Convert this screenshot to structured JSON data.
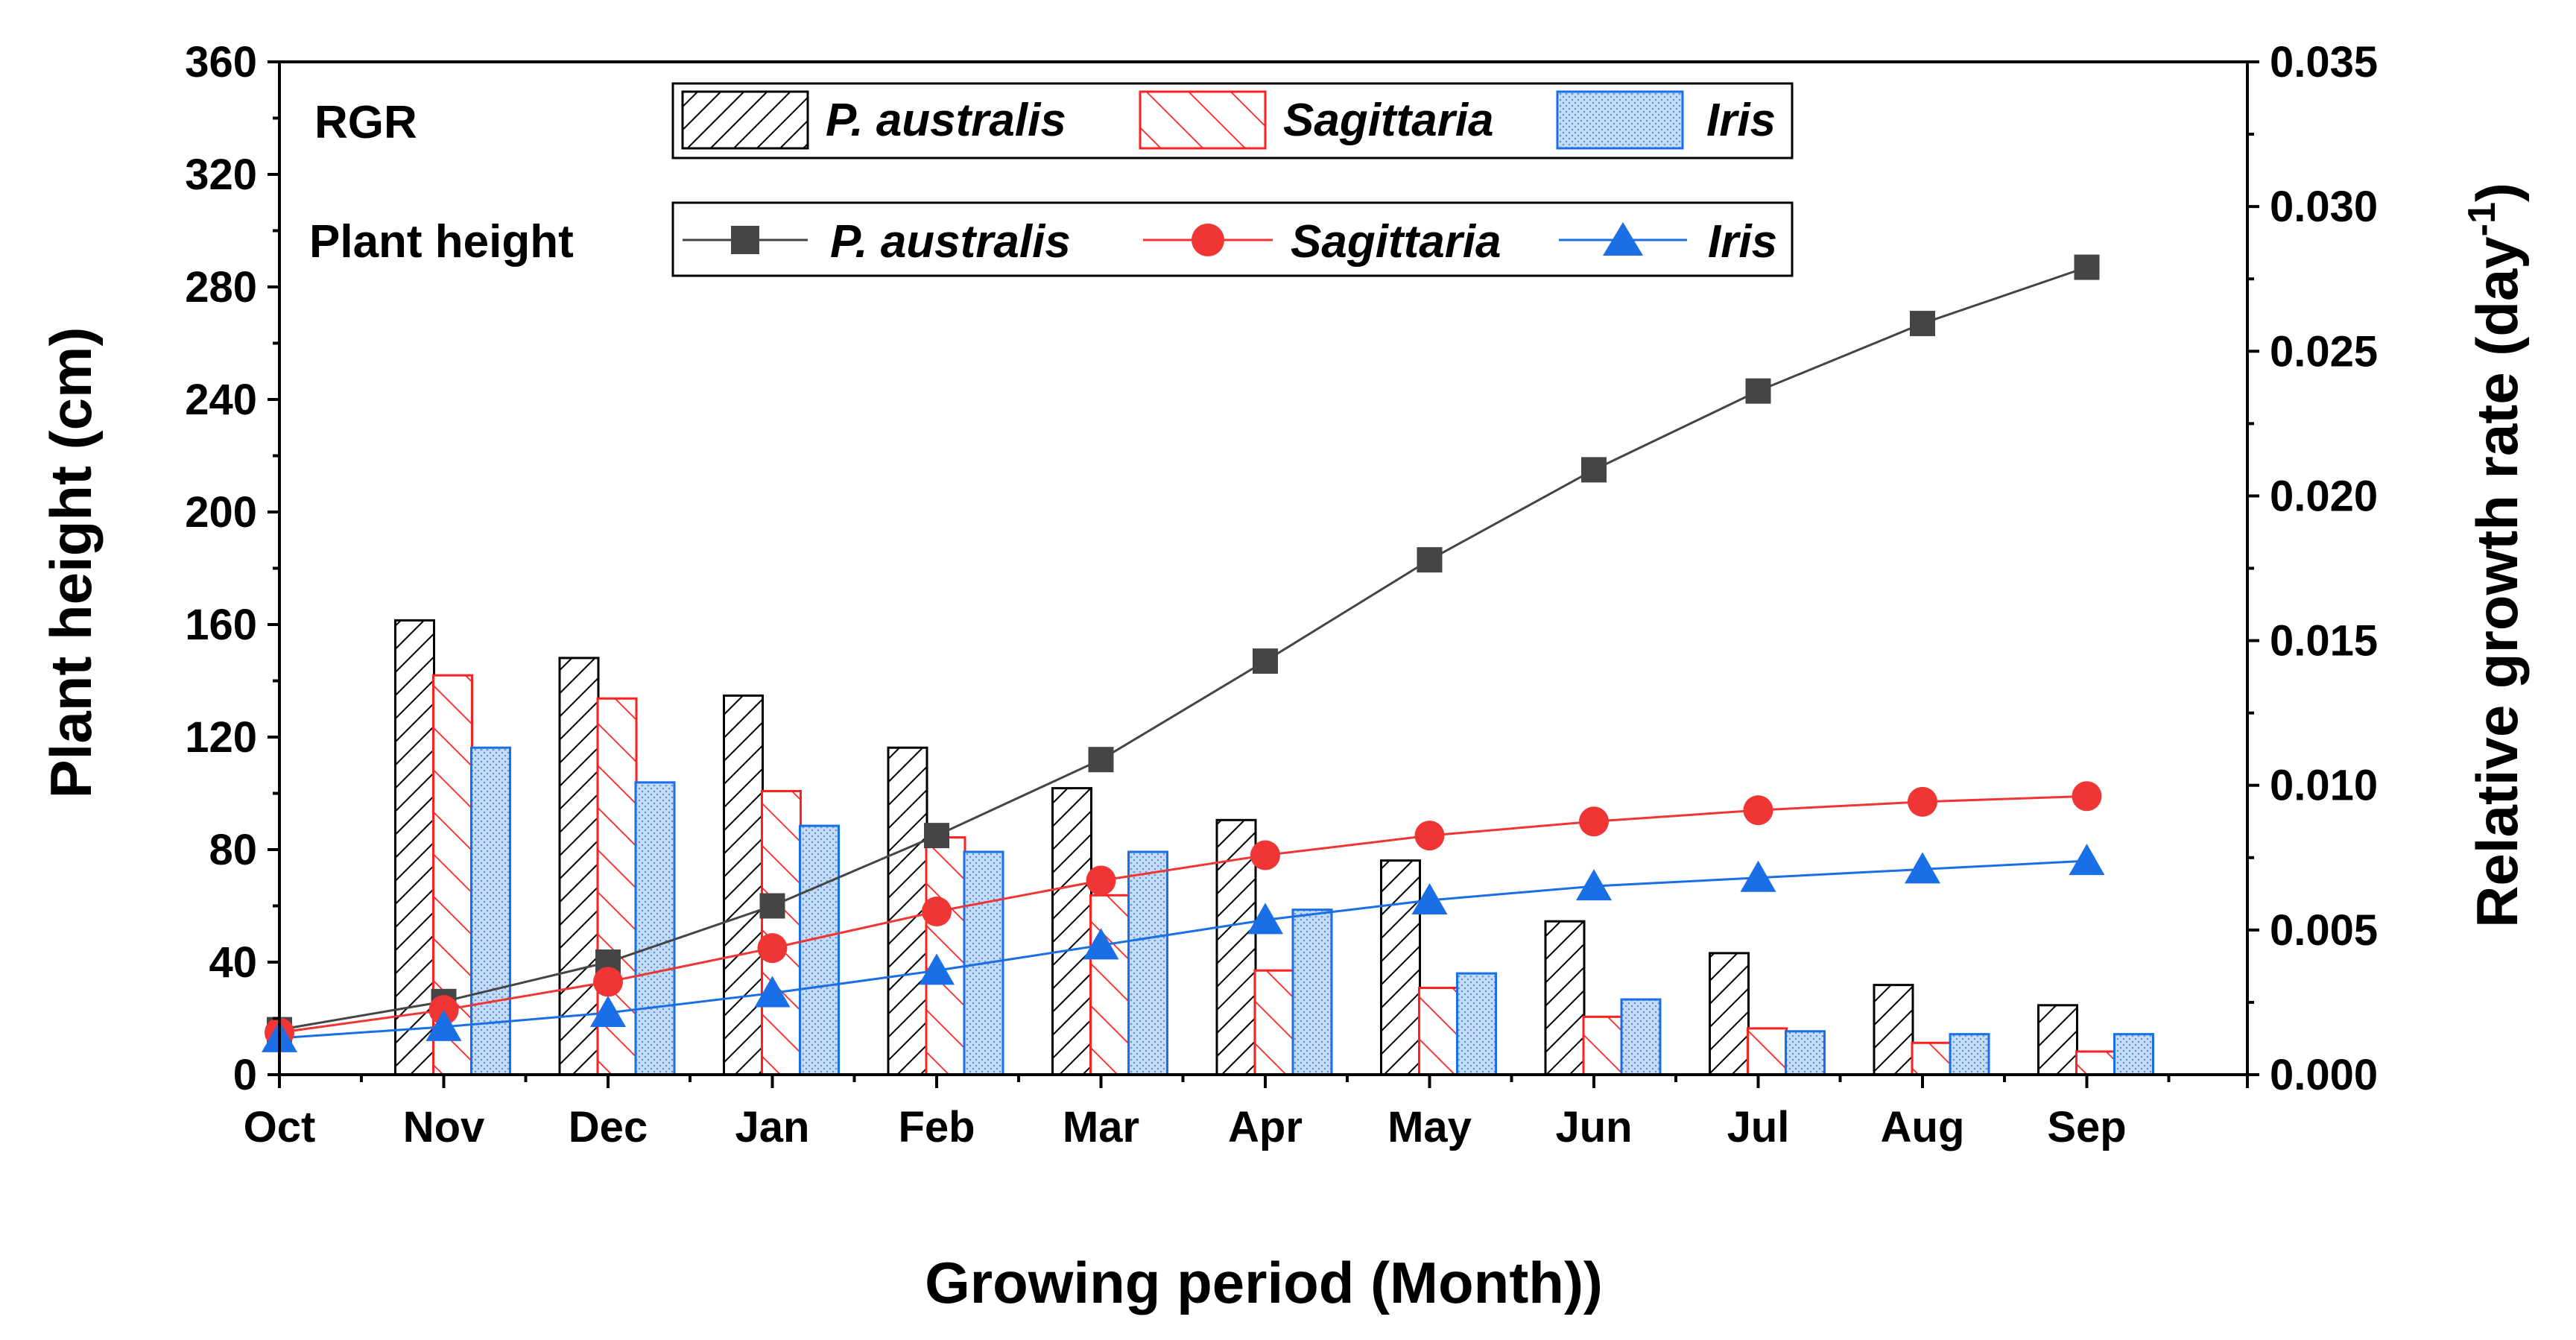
{
  "chart_data": {
    "type": "bar+line",
    "xlabel": "Growing period (Month))",
    "ylabel_left": "Plant height (cm)",
    "ylabel_right_prefix": "Relative growth rate (day",
    "ylabel_right_sup": "-1",
    "ylabel_right_suffix": ")",
    "categories": [
      "Oct",
      "Nov",
      "Dec",
      "Jan",
      "Feb",
      "Mar",
      "Apr",
      "May",
      "Jun",
      "Jul",
      "Aug",
      "Sep"
    ],
    "ylim_left": [
      0,
      360
    ],
    "yticks_left": [
      "0",
      "40",
      "80",
      "120",
      "160",
      "200",
      "240",
      "280",
      "320",
      "360"
    ],
    "ylim_right": [
      0,
      0.035
    ],
    "yticks_right": [
      "0.000",
      "0.005",
      "0.010",
      "0.015",
      "0.020",
      "0.025",
      "0.030",
      "0.035"
    ],
    "legend_rgr_label": "RGR",
    "legend_height_label": "Plant height",
    "rgr_series": [
      {
        "name": "P. australis",
        "style": "hatch-black",
        "color": "#000000",
        "values": [
          null,
          0.0157,
          0.0144,
          0.0131,
          0.0113,
          0.0099,
          0.0088,
          0.0074,
          0.0053,
          0.0042,
          0.0031,
          0.0024
        ]
      },
      {
        "name": "Sagittaria",
        "style": "hatch-red",
        "color": "#ff2020",
        "values": [
          null,
          0.0138,
          0.013,
          0.0098,
          0.0082,
          0.0062,
          0.0036,
          0.003,
          0.002,
          0.0016,
          0.0011,
          0.0008
        ]
      },
      {
        "name": "Iris",
        "style": "dots-blue",
        "color": "#1a6fe6",
        "values": [
          null,
          0.0113,
          0.0101,
          0.0086,
          0.0077,
          0.0077,
          0.0057,
          0.0035,
          0.0026,
          0.0015,
          0.0014,
          0.0014
        ]
      }
    ],
    "height_series": [
      {
        "name": "P. australis",
        "marker": "square",
        "color": "#454545",
        "values": [
          16,
          26,
          40,
          60,
          85,
          112,
          147,
          183,
          215,
          243,
          267,
          287
        ]
      },
      {
        "name": "Sagittaria",
        "marker": "circle",
        "color": "#f03535",
        "values": [
          15,
          23,
          33,
          45,
          58,
          69,
          78,
          85,
          90,
          94,
          97,
          99
        ]
      },
      {
        "name": "Iris",
        "marker": "triangle",
        "color": "#1a6fe6",
        "values": [
          13,
          17,
          22,
          29,
          37,
          46,
          55,
          62,
          67,
          70,
          73,
          76
        ]
      }
    ]
  }
}
